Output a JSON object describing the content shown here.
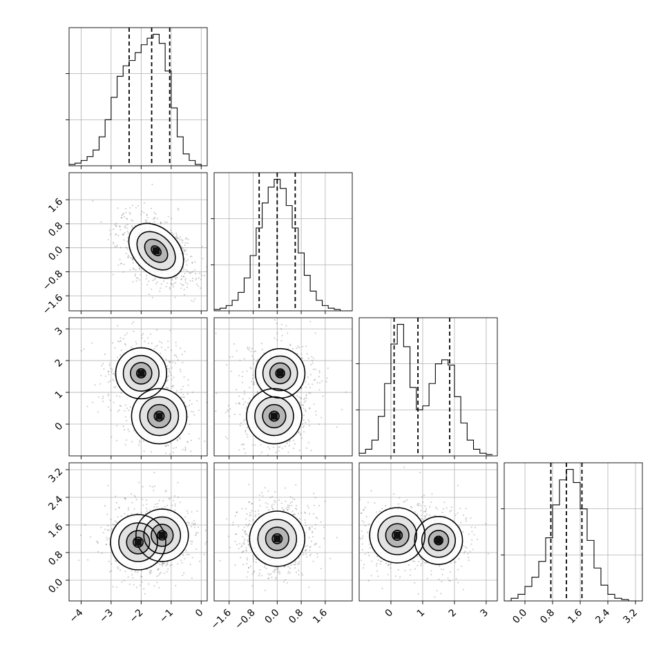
{
  "chart_data": {
    "type": "corner",
    "title": "",
    "parameters": [
      {
        "name": "",
        "range": [
          -4.4,
          0.2
        ],
        "ticks": [
          -4,
          -3,
          -2,
          -1,
          0
        ],
        "tick_labels": [
          "−4",
          "−3",
          "−2",
          "−1",
          "0"
        ],
        "quantiles": [
          -2.4,
          -1.65,
          -1.05
        ]
      },
      {
        "name": "",
        "range": [
          -2.1,
          2.5
        ],
        "ticks": [
          -1.6,
          -0.8,
          0.0,
          0.8,
          1.6
        ],
        "tick_labels": [
          "−1.6",
          "−0.8",
          "0.0",
          "0.8",
          "1.6"
        ],
        "quantiles": [
          -0.6,
          0.0,
          0.6
        ]
      },
      {
        "name": "",
        "range": [
          -1.0,
          3.35
        ],
        "ticks": [
          0,
          1,
          2,
          3
        ],
        "tick_labels": [
          "0",
          "1",
          "2",
          "3"
        ],
        "quantiles": [
          0.1,
          0.85,
          1.85
        ]
      },
      {
        "name": "",
        "range": [
          -0.6,
          3.4
        ],
        "ticks": [
          0.0,
          0.8,
          1.6,
          2.4,
          3.2
        ],
        "tick_labels": [
          "0.0",
          "0.8",
          "1.6",
          "2.4",
          "3.2"
        ],
        "quantiles": [
          0.75,
          1.2,
          1.65
        ]
      }
    ],
    "histograms": [
      {
        "dim": 0,
        "bin_edges": [
          -4.4,
          -4.2,
          -4.0,
          -3.8,
          -3.6,
          -3.4,
          -3.2,
          -3.0,
          -2.8,
          -2.6,
          -2.4,
          -2.2,
          -2.0,
          -1.8,
          -1.6,
          -1.4,
          -1.2,
          -1.0,
          -0.8,
          -0.6,
          -0.4,
          -0.2,
          0.0,
          0.2
        ],
        "counts": [
          1,
          2,
          4,
          7,
          12,
          22,
          35,
          52,
          68,
          76,
          80,
          86,
          92,
          97,
          100,
          93,
          72,
          44,
          22,
          9,
          4,
          1,
          0
        ]
      },
      {
        "dim": 1,
        "bin_edges": [
          -2.1,
          -1.9,
          -1.7,
          -1.5,
          -1.3,
          -1.1,
          -0.9,
          -0.7,
          -0.5,
          -0.3,
          -0.1,
          0.1,
          0.3,
          0.5,
          0.7,
          0.9,
          1.1,
          1.3,
          1.5,
          1.7,
          1.9,
          2.1,
          2.3,
          2.5
        ],
        "counts": [
          1,
          2,
          4,
          8,
          14,
          25,
          42,
          63,
          82,
          94,
          100,
          93,
          80,
          63,
          44,
          27,
          15,
          8,
          4,
          2,
          1,
          0,
          0
        ]
      },
      {
        "dim": 2,
        "bin_edges": [
          -1.0,
          -0.8,
          -0.6,
          -0.4,
          -0.2,
          0.0,
          0.2,
          0.4,
          0.6,
          0.8,
          1.0,
          1.2,
          1.4,
          1.6,
          1.8,
          2.0,
          2.2,
          2.4,
          2.6,
          2.8,
          3.0,
          3.2
        ],
        "counts": [
          2,
          5,
          12,
          30,
          55,
          85,
          100,
          83,
          52,
          35,
          38,
          55,
          70,
          73,
          69,
          45,
          25,
          12,
          5,
          2,
          1
        ]
      },
      {
        "dim": 3,
        "bin_edges": [
          -0.6,
          -0.4,
          -0.2,
          0.0,
          0.2,
          0.4,
          0.6,
          0.8,
          1.0,
          1.2,
          1.4,
          1.6,
          1.8,
          2.0,
          2.2,
          2.4,
          2.6,
          2.8,
          3.0,
          3.2,
          3.4
        ],
        "counts": [
          0,
          2,
          5,
          11,
          18,
          30,
          48,
          73,
          92,
          100,
          90,
          70,
          46,
          25,
          12,
          5,
          2,
          1,
          0,
          0
        ]
      }
    ],
    "joint_panels": [
      {
        "x_dim": 0,
        "y_dim": 1,
        "modes": [
          {
            "x": -1.5,
            "y": -0.1,
            "weight": 1.0
          }
        ],
        "correlation": -0.45
      },
      {
        "x_dim": 0,
        "y_dim": 2,
        "modes": [
          {
            "x": -2.0,
            "y": 1.6,
            "weight": 0.85
          },
          {
            "x": -1.4,
            "y": 0.25,
            "weight": 1.0
          }
        ],
        "correlation": 0.0
      },
      {
        "x_dim": 1,
        "y_dim": 2,
        "modes": [
          {
            "x": 0.1,
            "y": 1.6,
            "weight": 0.8
          },
          {
            "x": -0.1,
            "y": 0.25,
            "weight": 1.0
          }
        ],
        "correlation": 0.0
      },
      {
        "x_dim": 0,
        "y_dim": 3,
        "modes": [
          {
            "x": -2.1,
            "y": 1.1,
            "weight": 1.0
          },
          {
            "x": -1.3,
            "y": 1.3,
            "weight": 0.9
          }
        ],
        "correlation": 0.0
      },
      {
        "x_dim": 1,
        "y_dim": 3,
        "modes": [
          {
            "x": 0.0,
            "y": 1.2,
            "weight": 1.0
          }
        ],
        "correlation": 0.0
      },
      {
        "x_dim": 2,
        "y_dim": 3,
        "modes": [
          {
            "x": 0.2,
            "y": 1.3,
            "weight": 1.0
          },
          {
            "x": 1.5,
            "y": 1.15,
            "weight": 0.75
          }
        ],
        "correlation": 0.0
      }
    ],
    "grid": true,
    "quantile_line_style": "dashed",
    "color": "#000000"
  }
}
